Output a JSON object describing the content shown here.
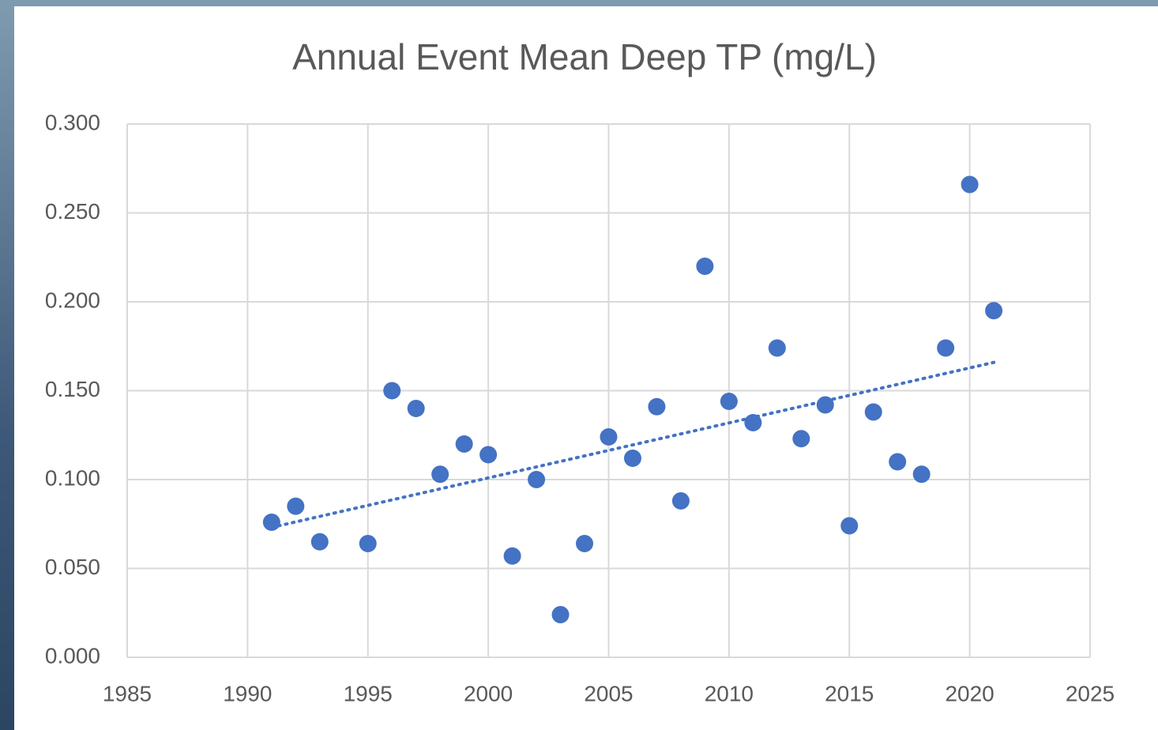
{
  "chart_data": {
    "type": "scatter",
    "title": "Annual Event Mean Deep TP (mg/L)",
    "series": [
      {
        "color": "#4472c4",
        "x": [
          1991,
          1992,
          1993,
          1995,
          1996,
          1997,
          1998,
          1999,
          2000,
          2001,
          2002,
          2003,
          2004,
          2005,
          2006,
          2007,
          2008,
          2009,
          2010,
          2011,
          2012,
          2013,
          2014,
          2015,
          2016,
          2017,
          2018,
          2019,
          2020,
          2021
        ],
        "values": [
          0.076,
          0.085,
          0.065,
          0.064,
          0.15,
          0.14,
          0.103,
          0.12,
          0.114,
          0.057,
          0.1,
          0.024,
          0.064,
          0.124,
          0.112,
          0.141,
          0.088,
          0.22,
          0.144,
          0.132,
          0.174,
          0.123,
          0.142,
          0.074,
          0.138,
          0.11,
          0.103,
          0.174,
          0.266,
          0.195
        ]
      }
    ],
    "trendline": "linear",
    "xlim": [
      1985,
      2025
    ],
    "xticks": [
      1985,
      1990,
      1995,
      2000,
      2005,
      2010,
      2015,
      2020,
      2025
    ],
    "ylim": [
      0,
      0.3
    ],
    "yticks": [
      {
        "value": 0,
        "label": "0.000"
      },
      {
        "value": 0.05,
        "label": "0.050"
      },
      {
        "value": 0.1,
        "label": "0.100"
      },
      {
        "value": 0.15,
        "label": "0.150"
      },
      {
        "value": 0.2,
        "label": "0.200"
      },
      {
        "value": 0.25,
        "label": "0.250"
      },
      {
        "value": 0.3,
        "label": "0.300"
      }
    ],
    "grid": true
  }
}
